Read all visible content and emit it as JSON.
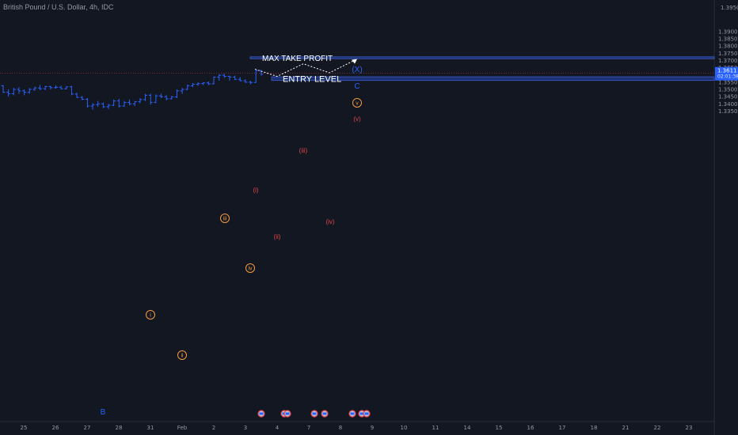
{
  "header": {
    "symbol": "British Pound / U.S. Dollar, 4h, IDC"
  },
  "chart_data": {
    "type": "ohlc",
    "price_axis": {
      "ticks": [
        "1.3350",
        "1.3400",
        "1.3450",
        "1.3500",
        "1.3550",
        "1.3600",
        "1.3650",
        "1.3700",
        "1.3750",
        "1.3800",
        "1.3850",
        "1.3900"
      ],
      "top_label": "1.3950",
      "current_price": "1.3611",
      "countdown": "02:01:38"
    },
    "time_axis": [
      "25",
      "26",
      "27",
      "28",
      "31",
      "Feb",
      "2",
      "3",
      "4",
      "7",
      "8",
      "9",
      "10",
      "11",
      "14",
      "15",
      "16",
      "17",
      "18",
      "21",
      "22",
      "23"
    ],
    "price_bars": [
      {
        "o": 1.3525,
        "h": 1.353,
        "l": 1.3475,
        "c": 1.348
      },
      {
        "o": 1.348,
        "h": 1.35,
        "l": 1.345,
        "c": 1.347
      },
      {
        "o": 1.347,
        "h": 1.351,
        "l": 1.346,
        "c": 1.35
      },
      {
        "o": 1.35,
        "h": 1.3515,
        "l": 1.347,
        "c": 1.349
      },
      {
        "o": 1.349,
        "h": 1.35,
        "l": 1.346,
        "c": 1.348
      },
      {
        "o": 1.348,
        "h": 1.351,
        "l": 1.347,
        "c": 1.35
      },
      {
        "o": 1.35,
        "h": 1.352,
        "l": 1.349,
        "c": 1.351
      },
      {
        "o": 1.351,
        "h": 1.353,
        "l": 1.3495,
        "c": 1.3505
      },
      {
        "o": 1.3505,
        "h": 1.3525,
        "l": 1.3495,
        "c": 1.352
      },
      {
        "o": 1.352,
        "h": 1.3525,
        "l": 1.35,
        "c": 1.3512
      },
      {
        "o": 1.3512,
        "h": 1.3528,
        "l": 1.3505,
        "c": 1.3515
      },
      {
        "o": 1.3515,
        "h": 1.3525,
        "l": 1.35,
        "c": 1.3505
      },
      {
        "o": 1.3505,
        "h": 1.3522,
        "l": 1.35,
        "c": 1.3518
      },
      {
        "o": 1.3518,
        "h": 1.3525,
        "l": 1.346,
        "c": 1.3468
      },
      {
        "o": 1.3468,
        "h": 1.3478,
        "l": 1.344,
        "c": 1.3445
      },
      {
        "o": 1.3445,
        "h": 1.3455,
        "l": 1.3425,
        "c": 1.3432
      },
      {
        "o": 1.3432,
        "h": 1.344,
        "l": 1.3375,
        "c": 1.3385
      },
      {
        "o": 1.3385,
        "h": 1.3405,
        "l": 1.336,
        "c": 1.3395
      },
      {
        "o": 1.3395,
        "h": 1.342,
        "l": 1.338,
        "c": 1.34
      },
      {
        "o": 1.34,
        "h": 1.341,
        "l": 1.337,
        "c": 1.338
      },
      {
        "o": 1.338,
        "h": 1.34,
        "l": 1.3365,
        "c": 1.339
      },
      {
        "o": 1.339,
        "h": 1.343,
        "l": 1.3385,
        "c": 1.342
      },
      {
        "o": 1.342,
        "h": 1.3435,
        "l": 1.3375,
        "c": 1.3385
      },
      {
        "o": 1.3385,
        "h": 1.342,
        "l": 1.338,
        "c": 1.341
      },
      {
        "o": 1.341,
        "h": 1.343,
        "l": 1.339,
        "c": 1.34
      },
      {
        "o": 1.34,
        "h": 1.342,
        "l": 1.3385,
        "c": 1.3415
      },
      {
        "o": 1.3415,
        "h": 1.344,
        "l": 1.3405,
        "c": 1.343
      },
      {
        "o": 1.343,
        "h": 1.347,
        "l": 1.342,
        "c": 1.346
      },
      {
        "o": 1.346,
        "h": 1.347,
        "l": 1.3395,
        "c": 1.341
      },
      {
        "o": 1.341,
        "h": 1.3465,
        "l": 1.3405,
        "c": 1.3455
      },
      {
        "o": 1.3455,
        "h": 1.347,
        "l": 1.344,
        "c": 1.345
      },
      {
        "o": 1.345,
        "h": 1.346,
        "l": 1.3425,
        "c": 1.3435
      },
      {
        "o": 1.3435,
        "h": 1.3455,
        "l": 1.343,
        "c": 1.3448
      },
      {
        "o": 1.3448,
        "h": 1.35,
        "l": 1.344,
        "c": 1.349
      },
      {
        "o": 1.349,
        "h": 1.351,
        "l": 1.347,
        "c": 1.35
      },
      {
        "o": 1.35,
        "h": 1.3535,
        "l": 1.3495,
        "c": 1.3525
      },
      {
        "o": 1.3525,
        "h": 1.3545,
        "l": 1.3515,
        "c": 1.3535
      },
      {
        "o": 1.3535,
        "h": 1.355,
        "l": 1.3525,
        "c": 1.354
      },
      {
        "o": 1.354,
        "h": 1.355,
        "l": 1.353,
        "c": 1.3545
      },
      {
        "o": 1.3545,
        "h": 1.3555,
        "l": 1.353,
        "c": 1.3538
      },
      {
        "o": 1.3538,
        "h": 1.359,
        "l": 1.3535,
        "c": 1.3585
      },
      {
        "o": 1.3585,
        "h": 1.3605,
        "l": 1.356,
        "c": 1.3598
      },
      {
        "o": 1.3598,
        "h": 1.3608,
        "l": 1.358,
        "c": 1.359
      },
      {
        "o": 1.359,
        "h": 1.3595,
        "l": 1.356,
        "c": 1.3585
      },
      {
        "o": 1.3585,
        "h": 1.3595,
        "l": 1.3565,
        "c": 1.357
      },
      {
        "o": 1.357,
        "h": 1.3585,
        "l": 1.3555,
        "c": 1.356
      },
      {
        "o": 1.356,
        "h": 1.357,
        "l": 1.3545,
        "c": 1.355
      },
      {
        "o": 1.355,
        "h": 1.356,
        "l": 1.3535,
        "c": 1.3548
      },
      {
        "o": 1.3548,
        "h": 1.364,
        "l": 1.3545,
        "c": 1.363
      },
      {
        "o": 1.363,
        "h": 1.3635,
        "l": 1.3595,
        "c": 1.3605
      }
    ],
    "zones": [
      {
        "label": "MAX TAKE PROFIT",
        "top": 1.3725,
        "bottom": 1.3712
      },
      {
        "label": "ENTRY LEVEL",
        "top": 1.3587,
        "bottom": 1.3562
      }
    ],
    "projection_path": [
      {
        "t": 0,
        "p": 1.364
      },
      {
        "t": 1,
        "p": 1.359
      },
      {
        "t": 2,
        "p": 1.3677
      },
      {
        "t": 3,
        "p": 1.3615
      },
      {
        "t": 4,
        "p": 1.371
      }
    ],
    "wave_labels": {
      "orange_circled": [
        "i",
        "ii",
        "iii",
        "iv",
        "v"
      ],
      "red": [
        "(i)",
        "(ii)",
        "(iii)",
        "(iv)",
        "(v)"
      ],
      "blue": [
        "B",
        "C",
        "(X)"
      ]
    },
    "event_markers": 6,
    "colors": {
      "background": "#131722",
      "bar": "#2962ff",
      "zone_fill": "#1e3a8a",
      "zone_border": "#3f5fcf",
      "orange": "#f79a3e",
      "red": "#e0474c",
      "blue": "#2962ff",
      "price_line": "#e0474c",
      "projection": "#ffffff"
    }
  }
}
